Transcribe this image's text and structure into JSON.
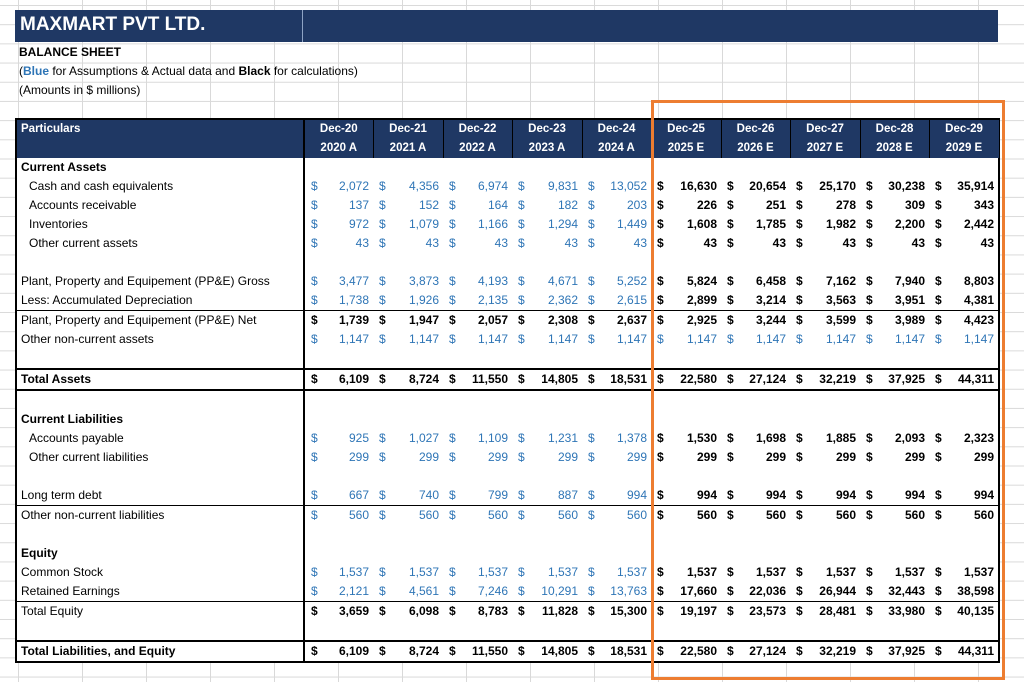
{
  "company": "MAXMART PVT LTD.",
  "sheet_title": "BALANCE SHEET",
  "note": {
    "pre": "(",
    "blue": "Blue",
    "mid": " for Assumptions & Actual data and ",
    "black": "Black",
    "post": " for calculations)"
  },
  "units": "(Amounts in $ millions)",
  "header_label": "Particulars",
  "periods": [
    {
      "month": "Dec-20",
      "year": "2020 A"
    },
    {
      "month": "Dec-21",
      "year": "2021 A"
    },
    {
      "month": "Dec-22",
      "year": "2022 A"
    },
    {
      "month": "Dec-23",
      "year": "2023 A"
    },
    {
      "month": "Dec-24",
      "year": "2024 A"
    },
    {
      "month": "Dec-25",
      "year": "2025 E"
    },
    {
      "month": "Dec-26",
      "year": "2026 E"
    },
    {
      "month": "Dec-27",
      "year": "2027 E"
    },
    {
      "month": "Dec-28",
      "year": "2028 E"
    },
    {
      "month": "Dec-29",
      "year": "2029 E"
    }
  ],
  "currency": "$",
  "rows": [
    {
      "label": "Current Assets",
      "type": "section"
    },
    {
      "label": "Cash and cash equivalents",
      "indent": true,
      "values": [
        "2,072",
        "4,356",
        "6,974",
        "9,831",
        "13,052",
        "16,630",
        "20,654",
        "25,170",
        "30,238",
        "35,914"
      ],
      "est_style": "bold"
    },
    {
      "label": "Accounts receivable",
      "indent": true,
      "values": [
        "137",
        "152",
        "164",
        "182",
        "203",
        "226",
        "251",
        "278",
        "309",
        "343"
      ],
      "est_style": "bold"
    },
    {
      "label": "Inventories",
      "indent": true,
      "values": [
        "972",
        "1,079",
        "1,166",
        "1,294",
        "1,449",
        "1,608",
        "1,785",
        "1,982",
        "2,200",
        "2,442"
      ],
      "est_style": "bold"
    },
    {
      "label": "Other current assets",
      "indent": true,
      "values": [
        "43",
        "43",
        "43",
        "43",
        "43",
        "43",
        "43",
        "43",
        "43",
        "43"
      ],
      "est_style": "bold"
    },
    {
      "type": "empty"
    },
    {
      "label": "Plant, Property and Equipement (PP&E) Gross",
      "values": [
        "3,477",
        "3,873",
        "4,193",
        "4,671",
        "5,252",
        "5,824",
        "6,458",
        "7,162",
        "7,940",
        "8,803"
      ],
      "est_style": "bold"
    },
    {
      "label": "Less: Accumulated Depreciation",
      "values": [
        "1,738",
        "1,926",
        "2,135",
        "2,362",
        "2,615",
        "2,899",
        "3,214",
        "3,563",
        "3,951",
        "4,381"
      ],
      "est_style": "bold",
      "bottom_line": true
    },
    {
      "label": "Plant, Property and Equipement (PP&E) Net",
      "values": [
        "1,739",
        "1,947",
        "2,057",
        "2,308",
        "2,637",
        "2,925",
        "3,244",
        "3,599",
        "3,989",
        "4,423"
      ],
      "act_style": "bold",
      "est_style": "bold"
    },
    {
      "label": "Other non-current assets",
      "values": [
        "1,147",
        "1,147",
        "1,147",
        "1,147",
        "1,147",
        "1,147",
        "1,147",
        "1,147",
        "1,147",
        "1,147"
      ],
      "est_style": "blue"
    },
    {
      "type": "empty"
    },
    {
      "label": "Total Assets",
      "type": "total",
      "values": [
        "6,109",
        "8,724",
        "11,550",
        "14,805",
        "18,531",
        "22,580",
        "27,124",
        "32,219",
        "37,925",
        "44,311"
      ]
    },
    {
      "type": "empty"
    },
    {
      "label": "Current Liabilities",
      "type": "section"
    },
    {
      "label": "Accounts payable",
      "indent": true,
      "values": [
        "925",
        "1,027",
        "1,109",
        "1,231",
        "1,378",
        "1,530",
        "1,698",
        "1,885",
        "2,093",
        "2,323"
      ],
      "est_style": "bold"
    },
    {
      "label": "Other current liabilities",
      "indent": true,
      "values": [
        "299",
        "299",
        "299",
        "299",
        "299",
        "299",
        "299",
        "299",
        "299",
        "299"
      ],
      "est_style": "bold"
    },
    {
      "type": "empty"
    },
    {
      "label": "Long term debt",
      "values": [
        "667",
        "740",
        "799",
        "887",
        "994",
        "994",
        "994",
        "994",
        "994",
        "994"
      ],
      "est_style": "bold",
      "bottom_line": true
    },
    {
      "label": "Other non-current liabilities",
      "values": [
        "560",
        "560",
        "560",
        "560",
        "560",
        "560",
        "560",
        "560",
        "560",
        "560"
      ],
      "est_style": "bold"
    },
    {
      "type": "empty"
    },
    {
      "label": "Equity",
      "type": "section"
    },
    {
      "label": "Common Stock",
      "values": [
        "1,537",
        "1,537",
        "1,537",
        "1,537",
        "1,537",
        "1,537",
        "1,537",
        "1,537",
        "1,537",
        "1,537"
      ],
      "est_style": "bold"
    },
    {
      "label": "Retained Earnings",
      "values": [
        "2,121",
        "4,561",
        "7,246",
        "10,291",
        "13,763",
        "17,660",
        "22,036",
        "26,944",
        "32,443",
        "38,598"
      ],
      "est_style": "bold",
      "bottom_line": true
    },
    {
      "label": "Total Equity",
      "values": [
        "3,659",
        "6,098",
        "8,783",
        "11,828",
        "15,300",
        "19,197",
        "23,573",
        "28,481",
        "33,980",
        "40,135"
      ],
      "act_style": "bold",
      "est_style": "bold"
    },
    {
      "type": "empty"
    },
    {
      "label": "Total Liabilities, and Equity",
      "type": "total",
      "values": [
        "6,109",
        "8,724",
        "11,550",
        "14,805",
        "18,531",
        "22,580",
        "27,124",
        "32,219",
        "37,925",
        "44,311"
      ]
    }
  ],
  "colors": {
    "header_bg": "#1f3864",
    "assumption_text": "#2e75b6",
    "highlight_border": "#ed7d31"
  }
}
